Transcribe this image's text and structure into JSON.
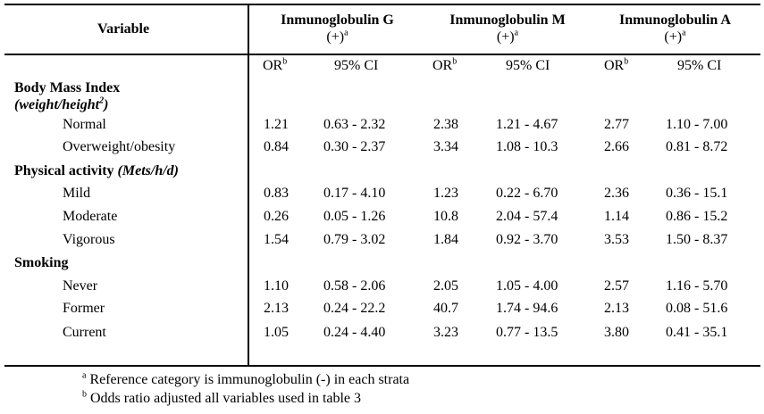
{
  "header": {
    "variable": "Variable",
    "groups": [
      {
        "name": "Inmunoglobulin G",
        "sub": "(+)",
        "sup": "a"
      },
      {
        "name": "Inmunoglobulin M",
        "sub": "(+)",
        "sup": "a"
      },
      {
        "name": "Inmunoglobulin A",
        "sub": "(+)",
        "sup": "a"
      }
    ],
    "or_label": "OR",
    "or_sup": "b",
    "ci_label": "95% CI"
  },
  "sections": [
    {
      "title": "Body Mass Index",
      "title_note": "(weight/height",
      "title_note_sup": "2",
      "title_note_end": ")",
      "rows": [
        {
          "label": "Normal",
          "values": [
            "1.21",
            "0.63 - 2.32",
            "2.38",
            "1.21 - 4.67",
            "2.77",
            "1.10 - 7.00"
          ]
        },
        {
          "label": "Overweight/obesity",
          "values": [
            "0.84",
            "0.30 - 2.37",
            "3.34",
            "1.08 - 10.3",
            "2.66",
            "0.81 - 8.72"
          ]
        }
      ]
    },
    {
      "title": "Physical activity",
      "title_note": "(Mets/h/d)",
      "rows": [
        {
          "label": "Mild",
          "values": [
            "0.83",
            "0.17 - 4.10",
            "1.23",
            "0.22 - 6.70",
            "2.36",
            "0.36 - 15.1"
          ]
        },
        {
          "label": "Moderate",
          "values": [
            "0.26",
            "0.05 - 1.26",
            "10.8",
            "2.04 - 57.4",
            "1.14",
            "0.86 - 15.2"
          ]
        },
        {
          "label": "Vigorous",
          "values": [
            "1.54",
            "0.79 - 3.02",
            "1.84",
            "0.92 - 3.70",
            "3.53",
            "1.50 - 8.37"
          ]
        }
      ]
    },
    {
      "title": "Smoking",
      "rows": [
        {
          "label": "Never",
          "values": [
            "1.10",
            "0.58 - 2.06",
            "2.05",
            "1.05 - 4.00",
            "2.57",
            "1.16 - 5.70"
          ]
        },
        {
          "label": "Former",
          "values": [
            "2.13",
            "0.24 - 22.2",
            "40.7",
            "1.74 - 94.6",
            "2.13",
            "0.08 - 51.6"
          ]
        },
        {
          "label": "Current",
          "values": [
            "1.05",
            "0.24 - 4.40",
            "3.23",
            "0.77 - 13.5",
            "3.80",
            "0.41 - 35.1"
          ]
        }
      ]
    }
  ],
  "footnotes": [
    {
      "mark": "a",
      "text": " Reference category is immunoglobulin (-) in each strata"
    },
    {
      "mark": "b",
      "text": " Odds ratio adjusted all variables used in table 3"
    }
  ]
}
